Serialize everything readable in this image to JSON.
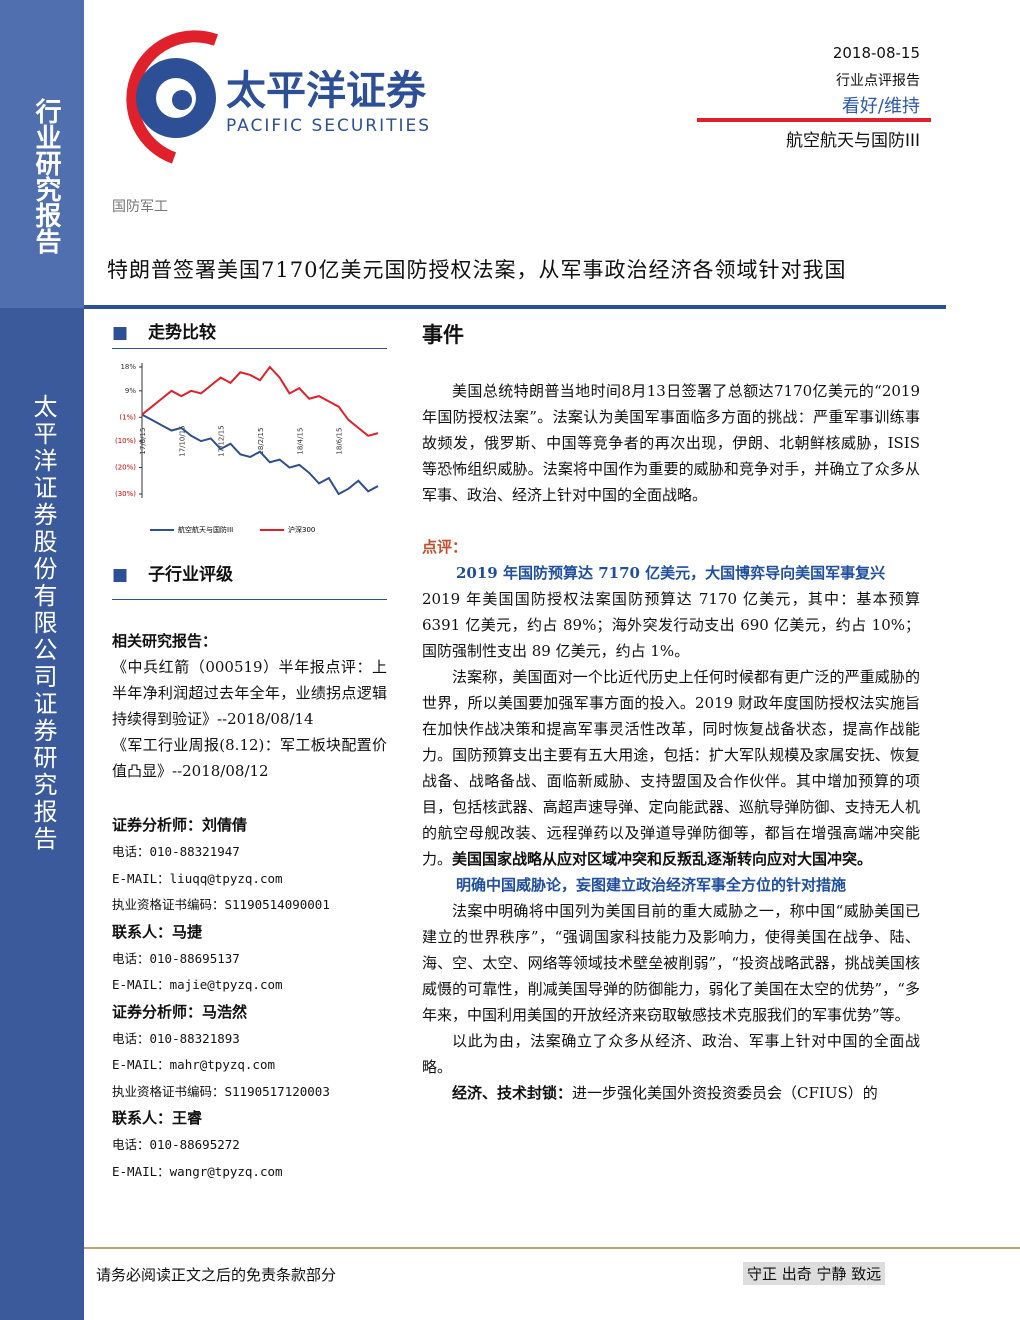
{
  "sidebar": {
    "top": "行业研究报告",
    "bottom": "太平洋证券股份有限公司证券研究报告"
  },
  "header": {
    "company_cn": "太平洋证券",
    "company_en": "PACIFIC SECURITIES",
    "date": "2018-08-15",
    "report_type": "行业点评报告",
    "rating": "看好/维持",
    "industry": "航空航天与国防III",
    "sector": "国防军工"
  },
  "title": "特朗普签署美国7170亿美元国防授权法案，从军事政治经济各领域针对我国",
  "left": {
    "trend_heading": "走势比较",
    "trend_chart": {
      "type": "line",
      "categories": [
        "17/8/15",
        null,
        null,
        null,
        "17/10/15",
        null,
        null,
        null,
        "17/12/15",
        null,
        null,
        null,
        "18/2/15",
        null,
        null,
        null,
        "18/4/15",
        null,
        null,
        null,
        "18/6/15",
        null,
        null,
        null,
        null
      ],
      "series": [
        {
          "name": "航空航天与国防III",
          "color": "#2f4f8f",
          "values": [
            0,
            -2,
            -4,
            -6,
            -5,
            -8,
            -10,
            -9,
            -13,
            -11,
            -15,
            -16,
            -14,
            -18,
            -17,
            -20,
            -19,
            -22,
            -26,
            -24,
            -30,
            -28,
            -25,
            -29,
            -27
          ]
        },
        {
          "name": "沪深300",
          "color": "#e0202a",
          "values": [
            0,
            3,
            6,
            9,
            7,
            9,
            8,
            11,
            14,
            12,
            16,
            15,
            13,
            18,
            14,
            8,
            10,
            6,
            7,
            5,
            3,
            -2,
            -5,
            -8,
            -7
          ]
        }
      ],
      "ylim": [
        -30,
        18
      ],
      "yticks": [
        {
          "value": 18,
          "label": "18%"
        },
        {
          "value": 9,
          "label": "9%"
        },
        {
          "value": -1,
          "label": "(1%)"
        },
        {
          "value": -10,
          "label": "(10%)"
        },
        {
          "value": -20,
          "label": "(20%)"
        },
        {
          "value": -30,
          "label": "(30%)"
        }
      ]
    },
    "rating_heading": "子行业评级",
    "related_heading": "相关研究报告：",
    "related": [
      "《中兵红箭（000519）半年报点评：上半年净利润超过去年全年，业绩拐点逻辑持续得到验证》--2018/08/14",
      "《军工行业周报(8.12)：军工板块配置价值凸显》--2018/08/12"
    ],
    "contacts": [
      {
        "label": "证券分析师：刘倩倩",
        "phone": "电话：010-88321947",
        "email": "E-MAIL：liuqq@tpyzq.com",
        "license": "执业资格证书编码：S1190514090001"
      },
      {
        "label": "联系人：马捷",
        "phone": "电话：010-88695137",
        "email": "E-MAIL：majie@tpyzq.com"
      },
      {
        "label": "证券分析师：马浩然",
        "phone": "电话：010-88321893",
        "email": "E-MAIL：mahr@tpyzq.com",
        "license": "执业资格证书编码：S1190517120003"
      },
      {
        "label": "联系人：王睿",
        "phone": "电话：010-88695272",
        "email": "E-MAIL：wangr@tpyzq.com"
      }
    ]
  },
  "body": {
    "event_heading": "事件",
    "p1": "美国总统特朗普当地时间8月13日签署了总额达7170亿美元的“2019 年国防授权法案”。法案认为美国军事面临多方面的挑战：严重军事训练事故频发，俄罗斯、中国等竞争者的再次出现，伊朗、北朝鲜核威胁，ISIS 等恐怖组织威胁。法案将中国作为重要的威胁和竞争对手，并确立了众多从军事、政治、经济上针对中国的全面战略。",
    "comment_heading": "点评：",
    "sub1": "2019 年国防预算达 7170 亿美元，大国博弈导向美国军事复兴",
    "p2": "2019 年美国国防授权法案国防预算达 7170 亿美元，其中：基本预算 6391 亿美元，约占 89%；海外突发行动支出 690 亿美元，约占 10%；国防强制性支出 89 亿美元，约占 1%。",
    "p3": "法案称，美国面对一个比近代历史上任何时候都有更广泛的严重威胁的世界，所以美国要加强军事方面的投入。2019 财政年度国防授权法实施旨在加快作战决策和提高军事灵活性改革，同时恢复战备状态，提高作战能力。国防预算支出主要有五大用途，包括：扩大军队规模及家属安抚、恢复战备、战略备战、面临新威胁、支持盟国及合作伙伴。其中增加预算的项目，包括核武器、高超声速导弹、定向能武器、巡航导弹防御、支持无人机的航空母舰改装、远程弹药以及弹道导弹防御等，都旨在增强高端冲突能力。",
    "p3_bold": "美国国家战略从应对区域冲突和反叛乱逐渐转向应对大国冲突。",
    "sub2": "明确中国威胁论，妄图建立政治经济军事全方位的针对措施",
    "p4": "法案中明确将中国列为美国目前的重大威胁之一，称中国“威胁美国已建立的世界秩序”，“强调国家科技能力及影响力，使得美国在战争、陆、海、空、太空、网络等领域技术壁垒被削弱”，“投资战略武器，挑战美国核威慑的可靠性，削减美国导弹的防御能力，弱化了美国在太空的优势”，“多年来，中国利用美国的开放经济来窃取敏感技术克服我们的军事优势”等。",
    "p5": "以此为由，法案确立了众多从经济、政治、军事上针对中国的全面战略。",
    "p6_bold": "经济、技术封锁：",
    "p6": "进一步强化美国外资投资委员会（CFIUS）的"
  },
  "footer": {
    "disclaimer": "请务必阅读正文之后的免责条款部分",
    "motto": "守正 出奇 宁静 致远"
  }
}
